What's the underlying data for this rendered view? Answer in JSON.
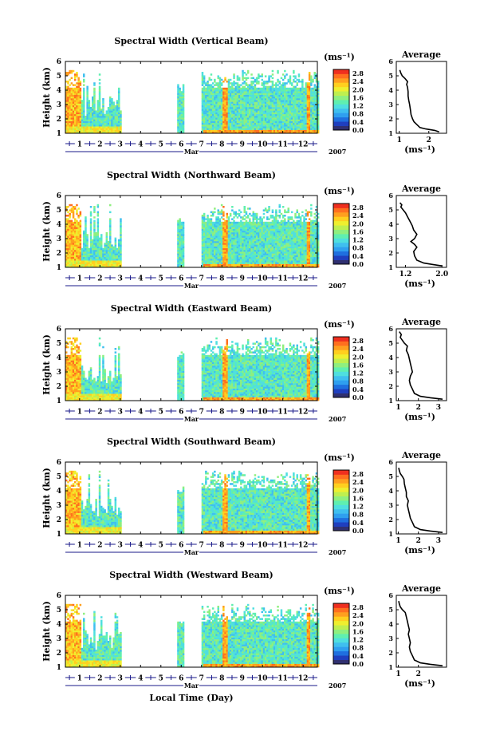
{
  "figure": {
    "xlabel": "Local Time (Day)",
    "month_label": "Mar",
    "year_label": "2007",
    "unit_label": "(ms⁻¹)",
    "average_title": "Average",
    "height_label": "Height (km)",
    "colormap": [
      "#303070",
      "#1f3fbf",
      "#1f6fdf",
      "#2f9fef",
      "#3fbfef",
      "#4fdfdf",
      "#5fefb0",
      "#8fef7f",
      "#bfef4f",
      "#efef2f",
      "#ffcf1f",
      "#ff9f1f",
      "#ff6f1f",
      "#ef2f1f"
    ]
  },
  "chart_data": [
    {
      "type": "heatmap",
      "title": "Spectral Width (Vertical Beam)",
      "ylabel": "Height (km)",
      "ylim": [
        1,
        6
      ],
      "yticks": [
        "1",
        "2",
        "3",
        "4",
        "5",
        "6"
      ],
      "xlim": [
        0.3,
        12.7
      ],
      "xticks": [
        "1",
        "2",
        "3",
        "4",
        "5",
        "6",
        "7",
        "8",
        "9",
        "10",
        "11",
        "12"
      ],
      "colorbar": {
        "ticks": [
          "0.0",
          "0.4",
          "0.8",
          "1.2",
          "1.6",
          "2.0",
          "2.4",
          "2.8"
        ],
        "range": [
          0,
          3.0
        ]
      },
      "average": {
        "title": "Average",
        "xlabel": "(ms⁻¹)",
        "xticks": [
          "1",
          "2"
        ],
        "xlim": [
          0.9,
          2.6
        ],
        "ylim": [
          1,
          6
        ],
        "yticks": [
          "1",
          "2",
          "3",
          "4",
          "5",
          "6"
        ],
        "profile": [
          [
            2.35,
            1.1
          ],
          [
            2.2,
            1.2
          ],
          [
            1.9,
            1.3
          ],
          [
            1.7,
            1.4
          ],
          [
            1.6,
            1.6
          ],
          [
            1.5,
            1.8
          ],
          [
            1.45,
            2.0
          ],
          [
            1.4,
            2.3
          ],
          [
            1.38,
            2.6
          ],
          [
            1.35,
            3.0
          ],
          [
            1.32,
            3.3
          ],
          [
            1.3,
            3.6
          ],
          [
            1.3,
            3.9
          ],
          [
            1.28,
            4.2
          ],
          [
            1.25,
            4.4
          ],
          [
            1.28,
            4.6
          ],
          [
            1.2,
            4.8
          ],
          [
            1.1,
            5.0
          ],
          [
            1.05,
            5.2
          ],
          [
            1.02,
            5.4
          ]
        ]
      }
    },
    {
      "type": "heatmap",
      "title": "Spectral Width (Northward Beam)",
      "ylabel": "Height (km)",
      "ylim": [
        1,
        6
      ],
      "yticks": [
        "1",
        "2",
        "3",
        "4",
        "5",
        "6"
      ],
      "xlim": [
        0.3,
        12.7
      ],
      "xticks": [
        "1",
        "2",
        "3",
        "4",
        "5",
        "6",
        "7",
        "8",
        "9",
        "10",
        "11",
        "12"
      ],
      "colorbar": {
        "ticks": [
          "0.0",
          "0.4",
          "0.8",
          "1.2",
          "1.6",
          "2.0",
          "2.4",
          "2.8"
        ],
        "range": [
          0,
          3.0
        ]
      },
      "average": {
        "title": "Average",
        "xlabel": "(ms⁻¹)",
        "xticks": [
          "1.2",
          "2.0"
        ],
        "xlim": [
          1.0,
          2.1
        ],
        "ylim": [
          1,
          6
        ],
        "yticks": [
          "1",
          "2",
          "3",
          "4",
          "5",
          "6"
        ],
        "profile": [
          [
            2.0,
            1.1
          ],
          [
            1.8,
            1.2
          ],
          [
            1.6,
            1.3
          ],
          [
            1.45,
            1.5
          ],
          [
            1.4,
            1.8
          ],
          [
            1.38,
            2.1
          ],
          [
            1.45,
            2.4
          ],
          [
            1.4,
            2.6
          ],
          [
            1.32,
            2.8
          ],
          [
            1.4,
            3.0
          ],
          [
            1.45,
            3.3
          ],
          [
            1.38,
            3.6
          ],
          [
            1.35,
            3.9
          ],
          [
            1.3,
            4.2
          ],
          [
            1.25,
            4.5
          ],
          [
            1.2,
            4.8
          ],
          [
            1.15,
            5.0
          ],
          [
            1.1,
            5.2
          ],
          [
            1.12,
            5.35
          ],
          [
            1.08,
            5.5
          ]
        ]
      }
    },
    {
      "type": "heatmap",
      "title": "Spectral Width (Eastward Beam)",
      "ylabel": "Height (km)",
      "ylim": [
        1,
        6
      ],
      "yticks": [
        "1",
        "2",
        "3",
        "4",
        "5",
        "6"
      ],
      "xlim": [
        0.3,
        12.7
      ],
      "xticks": [
        "1",
        "2",
        "3",
        "4",
        "5",
        "6",
        "7",
        "8",
        "9",
        "10",
        "11",
        "12"
      ],
      "colorbar": {
        "ticks": [
          "0.0",
          "0.4",
          "0.8",
          "1.2",
          "1.6",
          "2.0",
          "2.4",
          "2.8"
        ],
        "range": [
          0,
          3.0
        ]
      },
      "average": {
        "title": "Average",
        "xlabel": "(ms⁻¹)",
        "xticks": [
          "1",
          "2",
          "3"
        ],
        "xlim": [
          0.9,
          3.4
        ],
        "ylim": [
          1,
          6
        ],
        "yticks": [
          "1",
          "2",
          "3",
          "4",
          "5",
          "6"
        ],
        "profile": [
          [
            3.2,
            1.1
          ],
          [
            2.6,
            1.2
          ],
          [
            2.1,
            1.3
          ],
          [
            1.8,
            1.5
          ],
          [
            1.7,
            1.8
          ],
          [
            1.6,
            2.1
          ],
          [
            1.55,
            2.4
          ],
          [
            1.6,
            2.7
          ],
          [
            1.7,
            3.0
          ],
          [
            1.65,
            3.3
          ],
          [
            1.6,
            3.6
          ],
          [
            1.55,
            3.9
          ],
          [
            1.5,
            4.2
          ],
          [
            1.4,
            4.5
          ],
          [
            1.45,
            4.8
          ],
          [
            1.3,
            5.0
          ],
          [
            1.2,
            5.2
          ],
          [
            1.1,
            5.4
          ],
          [
            1.15,
            5.6
          ],
          [
            1.05,
            5.8
          ]
        ]
      }
    },
    {
      "type": "heatmap",
      "title": "Spectral Width (Southward Beam)",
      "ylabel": "Height (km)",
      "ylim": [
        1,
        6
      ],
      "yticks": [
        "1",
        "2",
        "3",
        "4",
        "5",
        "6"
      ],
      "xlim": [
        0.3,
        12.7
      ],
      "xticks": [
        "1",
        "2",
        "3",
        "4",
        "5",
        "6",
        "7",
        "8",
        "9",
        "10",
        "11",
        "12"
      ],
      "colorbar": {
        "ticks": [
          "0.0",
          "0.4",
          "0.8",
          "1.2",
          "1.6",
          "2.0",
          "2.4",
          "2.8"
        ],
        "range": [
          0,
          3.0
        ]
      },
      "average": {
        "title": "Average",
        "xlabel": "(ms⁻¹)",
        "xticks": [
          "1",
          "2",
          "3"
        ],
        "xlim": [
          0.9,
          3.4
        ],
        "ylim": [
          1,
          6
        ],
        "yticks": [
          "1",
          "2",
          "3",
          "4",
          "5",
          "6"
        ],
        "profile": [
          [
            3.2,
            1.1
          ],
          [
            2.6,
            1.2
          ],
          [
            2.1,
            1.3
          ],
          [
            1.8,
            1.5
          ],
          [
            1.7,
            1.8
          ],
          [
            1.6,
            2.1
          ],
          [
            1.55,
            2.4
          ],
          [
            1.5,
            2.7
          ],
          [
            1.45,
            3.0
          ],
          [
            1.5,
            3.3
          ],
          [
            1.4,
            3.6
          ],
          [
            1.4,
            3.9
          ],
          [
            1.35,
            4.2
          ],
          [
            1.3,
            4.5
          ],
          [
            1.28,
            4.8
          ],
          [
            1.2,
            5.0
          ],
          [
            1.1,
            5.2
          ],
          [
            1.05,
            5.4
          ],
          [
            1.02,
            5.6
          ]
        ]
      }
    },
    {
      "type": "heatmap",
      "title": "Spectral Width (Westward Beam)",
      "ylabel": "Height (km)",
      "ylim": [
        1,
        6
      ],
      "yticks": [
        "1",
        "2",
        "3",
        "4",
        "5",
        "6"
      ],
      "xlim": [
        0.3,
        12.7
      ],
      "xticks": [
        "1",
        "2",
        "3",
        "4",
        "5",
        "6",
        "7",
        "8",
        "9",
        "10",
        "11",
        "12"
      ],
      "colorbar": {
        "ticks": [
          "0.0",
          "0.4",
          "0.8",
          "1.2",
          "1.6",
          "2.0",
          "2.4",
          "2.8"
        ],
        "range": [
          0,
          3.0
        ]
      },
      "average": {
        "title": "Average",
        "xlabel": "(ms⁻¹)",
        "xticks": [
          "1",
          "2"
        ],
        "xlim": [
          0.9,
          3.4
        ],
        "ylim": [
          1,
          6
        ],
        "yticks": [
          "1",
          "2",
          "3",
          "4",
          "5",
          "6"
        ],
        "profile": [
          [
            3.2,
            1.1
          ],
          [
            2.6,
            1.2
          ],
          [
            2.1,
            1.3
          ],
          [
            1.8,
            1.5
          ],
          [
            1.7,
            1.8
          ],
          [
            1.6,
            2.1
          ],
          [
            1.55,
            2.4
          ],
          [
            1.6,
            2.7
          ],
          [
            1.55,
            3.0
          ],
          [
            1.5,
            3.3
          ],
          [
            1.55,
            3.6
          ],
          [
            1.5,
            3.9
          ],
          [
            1.45,
            4.2
          ],
          [
            1.4,
            4.5
          ],
          [
            1.35,
            4.8
          ],
          [
            1.2,
            5.0
          ],
          [
            1.1,
            5.2
          ],
          [
            1.05,
            5.4
          ],
          [
            1.02,
            5.6
          ]
        ]
      }
    }
  ]
}
